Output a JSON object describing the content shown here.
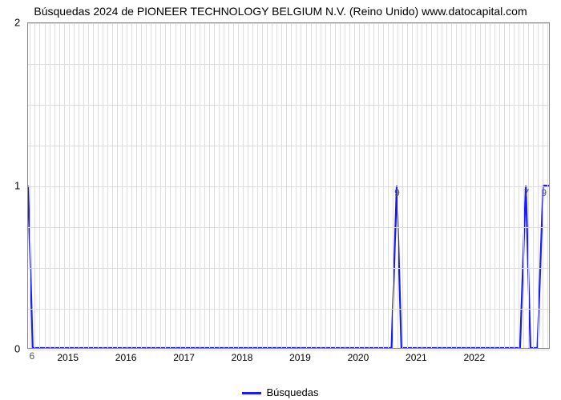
{
  "title": "Búsquedas 2024 de PIONEER TECHNOLOGY BELGIUM N.V. (Reino Unido) www.datocapital.com",
  "legend_label": "Búsquedas",
  "type": "line",
  "series_color": "#1a1aff",
  "background_color": "#ffffff",
  "grid_color": "#dddddd",
  "axis_color": "#888888",
  "line_width": 2.2,
  "title_fontsize": 14,
  "tick_fontsize": 12,
  "x_domain": [
    2014.3,
    2023.3
  ],
  "y_domain": [
    0,
    2
  ],
  "x_ticks": [
    2015,
    2016,
    2017,
    2018,
    2019,
    2020,
    2021,
    2022
  ],
  "x_minor_ticks_per_year": 12,
  "y_ticks": [
    0,
    1,
    2
  ],
  "y_minor_count": 8,
  "data_points": [
    {
      "x": 2014.3,
      "y": 1,
      "label": null
    },
    {
      "x": 2014.38,
      "y": 0,
      "label": "6"
    },
    {
      "x": 2020.58,
      "y": 0,
      "label": null
    },
    {
      "x": 2020.67,
      "y": 1,
      "label": "9"
    },
    {
      "x": 2020.75,
      "y": 0,
      "label": null
    },
    {
      "x": 2022.8,
      "y": 0,
      "label": null
    },
    {
      "x": 2022.9,
      "y": 1,
      "label": "7"
    },
    {
      "x": 2022.98,
      "y": 0,
      "label": null
    },
    {
      "x": 2023.1,
      "y": 0,
      "label": null
    },
    {
      "x": 2023.2,
      "y": 1,
      "label": "9"
    },
    {
      "x": 2023.3,
      "y": 1,
      "label": null
    }
  ]
}
